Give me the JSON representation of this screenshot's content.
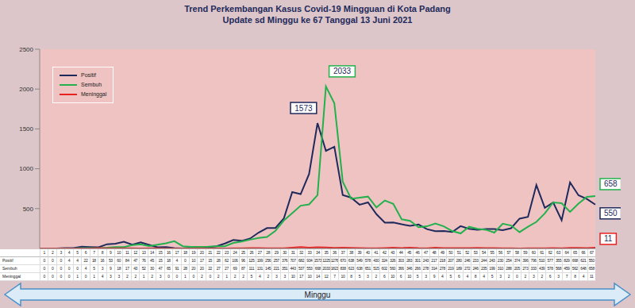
{
  "chart_data": {
    "type": "line",
    "title": "Trend Perkembangan Kasus Covid-19 Mingguan di Kota Padang",
    "subtitle": "Update sd Minggu ke 67 Tanggal 13 Juni 2021",
    "x_label": "Minggu",
    "categories": [
      1,
      2,
      3,
      4,
      5,
      6,
      7,
      8,
      9,
      10,
      11,
      12,
      13,
      14,
      15,
      16,
      17,
      18,
      19,
      20,
      21,
      22,
      23,
      24,
      25,
      26,
      27,
      28,
      29,
      30,
      31,
      32,
      33,
      34,
      35,
      36,
      37,
      38,
      39,
      40,
      41,
      42,
      43,
      44,
      45,
      46,
      47,
      48,
      49,
      50,
      51,
      52,
      53,
      54,
      55,
      56,
      57,
      58,
      59,
      60,
      61,
      62,
      63,
      64,
      65,
      66,
      67
    ],
    "series": [
      {
        "name": "Positif",
        "color": "#1f2a5c",
        "values": [
          0,
          0,
          0,
          4,
          4,
          22,
          18,
          16,
          53,
          60,
          84,
          47,
          76,
          45,
          15,
          18,
          4,
          0,
          10,
          17,
          15,
          28,
          62,
          106,
          96,
          125,
          199,
          256,
          257,
          376,
          707,
          682,
          934,
          1573,
          1225,
          1276,
          670,
          638,
          549,
          578,
          430,
          324,
          326,
          303,
          283,
          301,
          243,
          217,
          218,
          207,
          280,
          246,
          233,
          244,
          243,
          230,
          254,
          374,
          396,
          796,
          510,
          577,
          355,
          829,
          668,
          621,
          550
        ]
      },
      {
        "name": "Sembuh",
        "color": "#22b14c",
        "values": [
          0,
          0,
          0,
          0,
          0,
          4,
          5,
          3,
          9,
          18,
          17,
          43,
          52,
          30,
          47,
          65,
          91,
          28,
          20,
          20,
          22,
          27,
          27,
          69,
          87,
          111,
          131,
          145,
          221,
          351,
          443,
          537,
          553,
          668,
          2033,
          1823,
          838,
          623,
          638,
          651,
          515,
          602,
          560,
          366,
          346,
          266,
          278,
          314,
          278,
          219,
          189,
          272,
          246,
          235,
          199,
          310,
          288,
          205,
          273,
          333,
          439,
          578,
          568,
          459,
          562,
          648,
          658
        ]
      },
      {
        "name": "Meninggal",
        "color": "#e8201e",
        "values": [
          0,
          0,
          0,
          0,
          1,
          0,
          1,
          4,
          3,
          3,
          2,
          2,
          1,
          2,
          3,
          0,
          0,
          1,
          0,
          2,
          0,
          2,
          1,
          2,
          2,
          5,
          4,
          2,
          3,
          3,
          10,
          17,
          10,
          14,
          12,
          7,
          10,
          8,
          5,
          3,
          2,
          6,
          10,
          6,
          10,
          5,
          3,
          9,
          4,
          5,
          6,
          4,
          8,
          4,
          5,
          3,
          2,
          0,
          2,
          3,
          2,
          6,
          3,
          7,
          8,
          4,
          11
        ]
      }
    ],
    "ylim": [
      0,
      2500
    ],
    "yticks": [
      0,
      500,
      1000,
      1500,
      2000,
      2500
    ],
    "grid": false,
    "legend": "top-left",
    "tick_labels": "y",
    "annotations": [
      {
        "text": "1573",
        "x": 34,
        "series": "Positif"
      },
      {
        "text": "2033",
        "x": 35,
        "series": "Sembuh"
      },
      {
        "text": "658",
        "x": 67,
        "series": "Sembuh"
      },
      {
        "text": "550",
        "x": 67,
        "series": "Positif"
      },
      {
        "text": "11",
        "x": 67,
        "series": "Meninggal"
      }
    ]
  }
}
